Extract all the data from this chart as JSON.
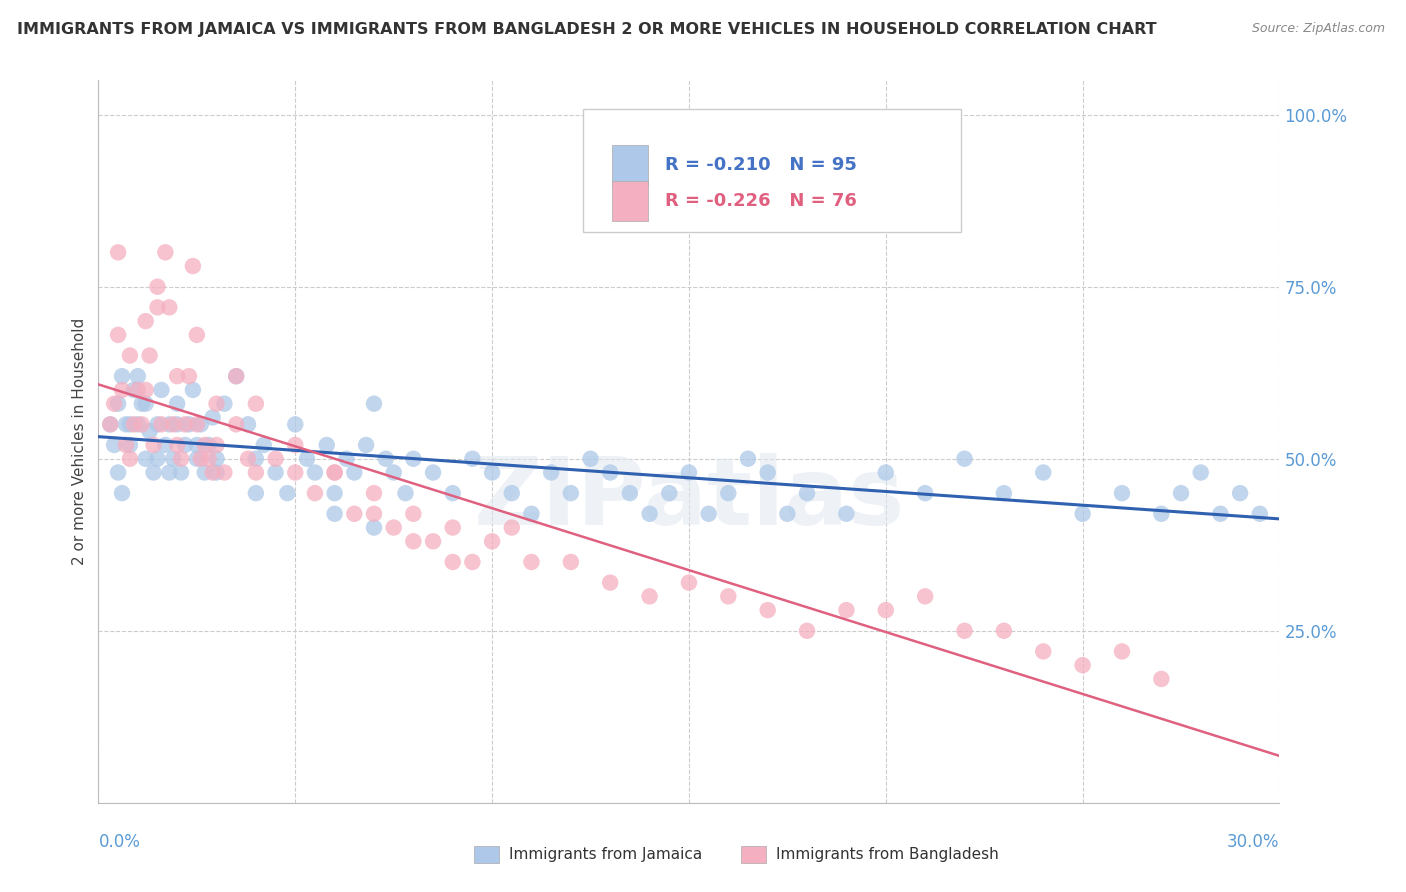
{
  "title": "IMMIGRANTS FROM JAMAICA VS IMMIGRANTS FROM BANGLADESH 2 OR MORE VEHICLES IN HOUSEHOLD CORRELATION CHART",
  "source": "Source: ZipAtlas.com",
  "ylabel": "2 or more Vehicles in Household",
  "xlim": [
    0.0,
    30.0
  ],
  "ylim": [
    0.0,
    105.0
  ],
  "jamaica_R": -0.21,
  "jamaica_N": 95,
  "bangladesh_R": -0.226,
  "bangladesh_N": 76,
  "jamaica_color": "#adc8e8",
  "bangladesh_color": "#f4afc0",
  "jamaica_line_color": "#3060b0",
  "bangladesh_line_color": "#e06080",
  "legend_label_jamaica": "Immigrants from Jamaica",
  "legend_label_bangladesh": "Immigrants from Bangladesh",
  "watermark": "ZIPatlas",
  "jamaica_x": [
    0.5,
    0.6,
    0.7,
    0.8,
    0.9,
    1.0,
    1.1,
    1.2,
    1.3,
    1.4,
    1.5,
    1.6,
    1.7,
    1.8,
    1.9,
    2.0,
    2.1,
    2.2,
    2.3,
    2.4,
    2.5,
    2.6,
    2.7,
    2.8,
    2.9,
    3.0,
    3.2,
    3.5,
    3.8,
    4.0,
    4.2,
    4.5,
    4.8,
    5.0,
    5.3,
    5.5,
    5.8,
    6.0,
    6.3,
    6.5,
    6.8,
    7.0,
    7.3,
    7.5,
    7.8,
    8.0,
    8.5,
    9.0,
    9.5,
    10.0,
    10.5,
    11.0,
    11.5,
    12.0,
    12.5,
    13.0,
    13.5,
    14.0,
    14.5,
    15.0,
    15.5,
    16.0,
    16.5,
    17.0,
    17.5,
    18.0,
    19.0,
    20.0,
    21.0,
    22.0,
    23.0,
    24.0,
    25.0,
    26.0,
    27.0,
    27.5,
    28.0,
    28.5,
    29.0,
    29.5,
    0.3,
    0.4,
    0.5,
    0.6,
    0.8,
    1.0,
    1.2,
    1.5,
    1.8,
    2.0,
    2.5,
    3.0,
    4.0,
    6.0,
    7.0
  ],
  "jamaica_y": [
    58,
    62,
    55,
    52,
    60,
    55,
    58,
    50,
    54,
    48,
    55,
    60,
    52,
    55,
    50,
    58,
    48,
    52,
    55,
    60,
    50,
    55,
    48,
    52,
    56,
    50,
    58,
    62,
    55,
    50,
    52,
    48,
    45,
    55,
    50,
    48,
    52,
    45,
    50,
    48,
    52,
    58,
    50,
    48,
    45,
    50,
    48,
    45,
    50,
    48,
    45,
    42,
    48,
    45,
    50,
    48,
    45,
    42,
    45,
    48,
    42,
    45,
    50,
    48,
    42,
    45,
    42,
    48,
    45,
    50,
    45,
    48,
    42,
    45,
    42,
    45,
    48,
    42,
    45,
    42,
    55,
    52,
    48,
    45,
    55,
    62,
    58,
    50,
    48,
    55,
    52,
    48,
    45,
    42,
    40
  ],
  "bangladesh_x": [
    0.3,
    0.4,
    0.5,
    0.6,
    0.7,
    0.8,
    0.9,
    1.0,
    1.1,
    1.2,
    1.3,
    1.4,
    1.5,
    1.6,
    1.7,
    1.8,
    1.9,
    2.0,
    2.1,
    2.2,
    2.3,
    2.4,
    2.5,
    2.6,
    2.7,
    2.8,
    2.9,
    3.0,
    3.2,
    3.5,
    3.8,
    4.0,
    4.5,
    5.0,
    5.5,
    6.0,
    6.5,
    7.0,
    7.5,
    8.0,
    8.5,
    9.0,
    9.5,
    10.0,
    10.5,
    11.0,
    12.0,
    13.0,
    14.0,
    15.0,
    16.0,
    17.0,
    18.0,
    19.0,
    20.0,
    21.0,
    22.0,
    23.0,
    24.0,
    25.0,
    26.0,
    27.0,
    0.5,
    0.8,
    1.2,
    1.5,
    2.0,
    2.5,
    3.0,
    3.5,
    4.0,
    5.0,
    6.0,
    7.0,
    8.0,
    9.0
  ],
  "bangladesh_y": [
    55,
    58,
    80,
    60,
    52,
    50,
    55,
    60,
    55,
    60,
    65,
    52,
    75,
    55,
    80,
    72,
    55,
    52,
    50,
    55,
    62,
    78,
    55,
    50,
    52,
    50,
    48,
    52,
    48,
    55,
    50,
    48,
    50,
    48,
    45,
    48,
    42,
    45,
    40,
    42,
    38,
    40,
    35,
    38,
    40,
    35,
    35,
    32,
    30,
    32,
    30,
    28,
    25,
    28,
    28,
    30,
    25,
    25,
    22,
    20,
    22,
    18,
    68,
    65,
    70,
    72,
    62,
    68,
    58,
    62,
    58,
    52,
    48,
    42,
    38,
    35
  ]
}
